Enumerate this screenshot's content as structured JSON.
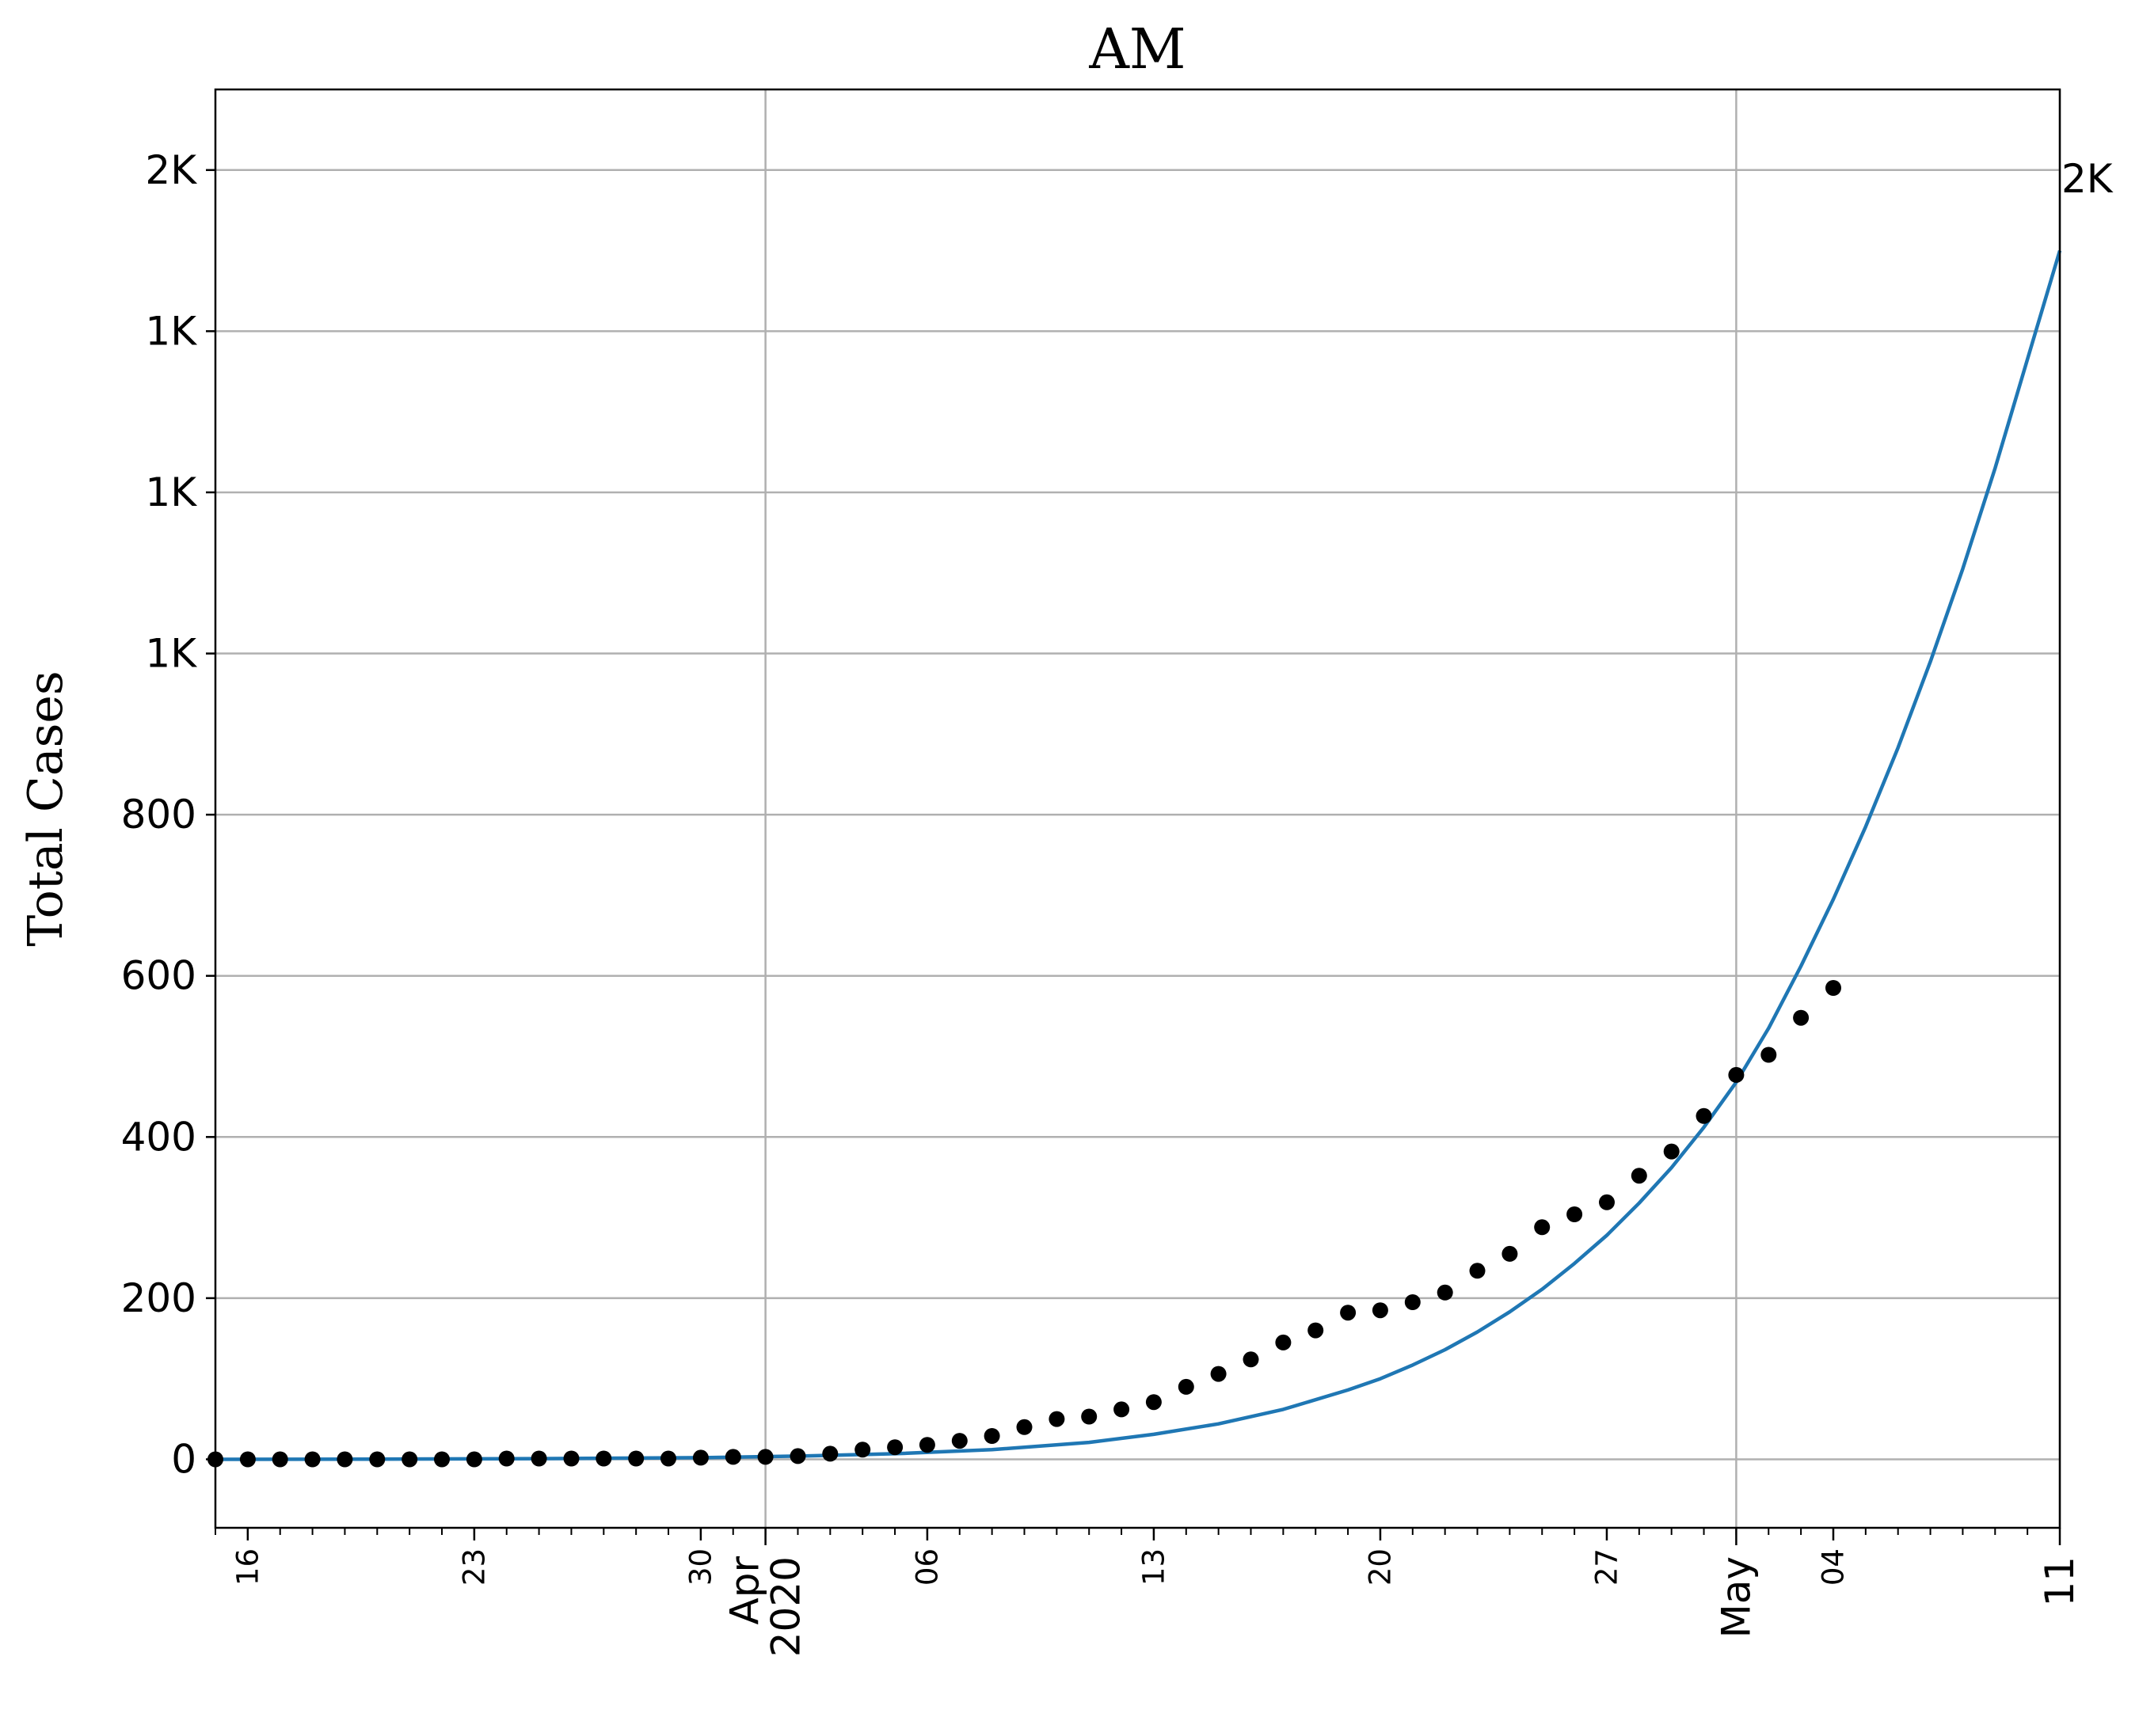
{
  "chart_data": {
    "type": "scatter",
    "title": "AM",
    "xlabel": "",
    "ylabel": "Total Cases",
    "ylim": [
      -85,
      1700
    ],
    "xlim": [
      "2020-03-15",
      "2020-05-11"
    ],
    "grid": true,
    "y_ticks": [
      {
        "value": 0,
        "label": "0"
      },
      {
        "value": 200,
        "label": "200"
      },
      {
        "value": 400,
        "label": "400"
      },
      {
        "value": 600,
        "label": "600"
      },
      {
        "value": 800,
        "label": "800"
      },
      {
        "value": 1000,
        "label": "1K"
      },
      {
        "value": 1200,
        "label": "1K"
      },
      {
        "value": 1400,
        "label": "1K"
      },
      {
        "value": 1600,
        "label": "2K"
      }
    ],
    "x_major_ticks": [
      {
        "date": "2020-04-01",
        "label": "Apr\n2020"
      },
      {
        "date": "2020-05-01",
        "label": "May"
      },
      {
        "date": "2020-05-11",
        "label": "11"
      }
    ],
    "x_minor_labels": [
      {
        "date": "2020-03-16",
        "label": "16"
      },
      {
        "date": "2020-03-23",
        "label": "23"
      },
      {
        "date": "2020-03-30",
        "label": "30"
      },
      {
        "date": "2020-04-06",
        "label": "06"
      },
      {
        "date": "2020-04-13",
        "label": "13"
      },
      {
        "date": "2020-04-20",
        "label": "20"
      },
      {
        "date": "2020-04-27",
        "label": "27"
      },
      {
        "date": "2020-05-04",
        "label": "04"
      }
    ],
    "end_label": "2K",
    "series": [
      {
        "kind": "scatter",
        "color": "#000000",
        "points": [
          {
            "x": "2020-03-15",
            "y": 0
          },
          {
            "x": "2020-03-16",
            "y": 0
          },
          {
            "x": "2020-03-17",
            "y": 0
          },
          {
            "x": "2020-03-18",
            "y": 0
          },
          {
            "x": "2020-03-19",
            "y": 0
          },
          {
            "x": "2020-03-20",
            "y": 0
          },
          {
            "x": "2020-03-21",
            "y": 0
          },
          {
            "x": "2020-03-22",
            "y": 0
          },
          {
            "x": "2020-03-23",
            "y": 0
          },
          {
            "x": "2020-03-24",
            "y": 1
          },
          {
            "x": "2020-03-25",
            "y": 1
          },
          {
            "x": "2020-03-26",
            "y": 1
          },
          {
            "x": "2020-03-27",
            "y": 1
          },
          {
            "x": "2020-03-28",
            "y": 1
          },
          {
            "x": "2020-03-29",
            "y": 1
          },
          {
            "x": "2020-03-30",
            "y": 2
          },
          {
            "x": "2020-03-31",
            "y": 3
          },
          {
            "x": "2020-04-01",
            "y": 3
          },
          {
            "x": "2020-04-02",
            "y": 4
          },
          {
            "x": "2020-04-03",
            "y": 7
          },
          {
            "x": "2020-04-04",
            "y": 12
          },
          {
            "x": "2020-04-05",
            "y": 15
          },
          {
            "x": "2020-04-06",
            "y": 18
          },
          {
            "x": "2020-04-07",
            "y": 23
          },
          {
            "x": "2020-04-08",
            "y": 29
          },
          {
            "x": "2020-04-09",
            "y": 40
          },
          {
            "x": "2020-04-10",
            "y": 50
          },
          {
            "x": "2020-04-11",
            "y": 53
          },
          {
            "x": "2020-04-12",
            "y": 62
          },
          {
            "x": "2020-04-13",
            "y": 71
          },
          {
            "x": "2020-04-14",
            "y": 90
          },
          {
            "x": "2020-04-15",
            "y": 106
          },
          {
            "x": "2020-04-16",
            "y": 124
          },
          {
            "x": "2020-04-17",
            "y": 145
          },
          {
            "x": "2020-04-18",
            "y": 160
          },
          {
            "x": "2020-04-19",
            "y": 182
          },
          {
            "x": "2020-04-20",
            "y": 185
          },
          {
            "x": "2020-04-21",
            "y": 195
          },
          {
            "x": "2020-04-22",
            "y": 207
          },
          {
            "x": "2020-04-23",
            "y": 234
          },
          {
            "x": "2020-04-24",
            "y": 255
          },
          {
            "x": "2020-04-25",
            "y": 288
          },
          {
            "x": "2020-04-26",
            "y": 304
          },
          {
            "x": "2020-04-27",
            "y": 319
          },
          {
            "x": "2020-04-28",
            "y": 352
          },
          {
            "x": "2020-04-29",
            "y": 382
          },
          {
            "x": "2020-04-30",
            "y": 426
          },
          {
            "x": "2020-05-01",
            "y": 477
          },
          {
            "x": "2020-05-02",
            "y": 502
          },
          {
            "x": "2020-05-03",
            "y": 548
          },
          {
            "x": "2020-05-04",
            "y": 585
          }
        ]
      },
      {
        "kind": "line",
        "color": "#1f77b4",
        "points": [
          {
            "x": "2020-03-15",
            "y": 0
          },
          {
            "x": "2020-03-20",
            "y": 0.3
          },
          {
            "x": "2020-03-25",
            "y": 0.9
          },
          {
            "x": "2020-03-30",
            "y": 2
          },
          {
            "x": "2020-04-02",
            "y": 4
          },
          {
            "x": "2020-04-05",
            "y": 7
          },
          {
            "x": "2020-04-08",
            "y": 12
          },
          {
            "x": "2020-04-11",
            "y": 21
          },
          {
            "x": "2020-04-13",
            "y": 31
          },
          {
            "x": "2020-04-15",
            "y": 44
          },
          {
            "x": "2020-04-17",
            "y": 62
          },
          {
            "x": "2020-04-19",
            "y": 86
          },
          {
            "x": "2020-04-20",
            "y": 100
          },
          {
            "x": "2020-04-21",
            "y": 117
          },
          {
            "x": "2020-04-22",
            "y": 136
          },
          {
            "x": "2020-04-23",
            "y": 158
          },
          {
            "x": "2020-04-24",
            "y": 183
          },
          {
            "x": "2020-04-25",
            "y": 211
          },
          {
            "x": "2020-04-26",
            "y": 243
          },
          {
            "x": "2020-04-27",
            "y": 278
          },
          {
            "x": "2020-04-28",
            "y": 318
          },
          {
            "x": "2020-04-29",
            "y": 362
          },
          {
            "x": "2020-04-30",
            "y": 412
          },
          {
            "x": "2020-05-01",
            "y": 468
          },
          {
            "x": "2020-05-02",
            "y": 535
          },
          {
            "x": "2020-05-03",
            "y": 612
          },
          {
            "x": "2020-05-04",
            "y": 695
          },
          {
            "x": "2020-05-05",
            "y": 785
          },
          {
            "x": "2020-05-06",
            "y": 883
          },
          {
            "x": "2020-05-07",
            "y": 990
          },
          {
            "x": "2020-05-08",
            "y": 1105
          },
          {
            "x": "2020-05-09",
            "y": 1230
          },
          {
            "x": "2020-05-10",
            "y": 1365
          },
          {
            "x": "2020-05-11",
            "y": 1500
          }
        ]
      }
    ]
  }
}
